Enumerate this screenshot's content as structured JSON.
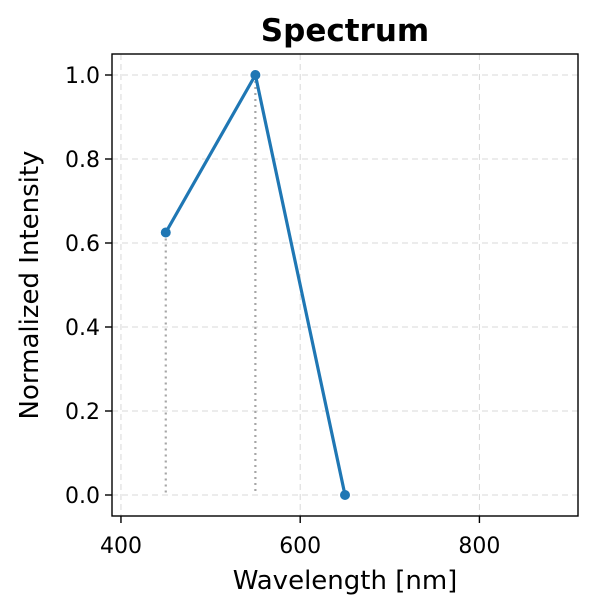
{
  "chart_data": {
    "type": "line",
    "title": "Spectrum",
    "xlabel": "Wavelength [nm]",
    "ylabel": "Normalized Intensity",
    "xlim": [
      390,
      910
    ],
    "ylim": [
      -0.05,
      1.05
    ],
    "xticks": [
      400,
      600,
      800
    ],
    "xtick_labels": [
      "400",
      "600",
      "800"
    ],
    "yticks": [
      0.0,
      0.2,
      0.4,
      0.6,
      0.8,
      1.0
    ],
    "ytick_labels": [
      "0.0",
      "0.2",
      "0.4",
      "0.6",
      "0.8",
      "1.0"
    ],
    "grid": true,
    "series": [
      {
        "x": [
          450,
          550,
          650
        ],
        "y": [
          0.625,
          1.0,
          0.0
        ],
        "color": "#1f77b4",
        "markers": true,
        "drop_lines": true
      }
    ],
    "drop_line_color": "#a6a6a6"
  }
}
